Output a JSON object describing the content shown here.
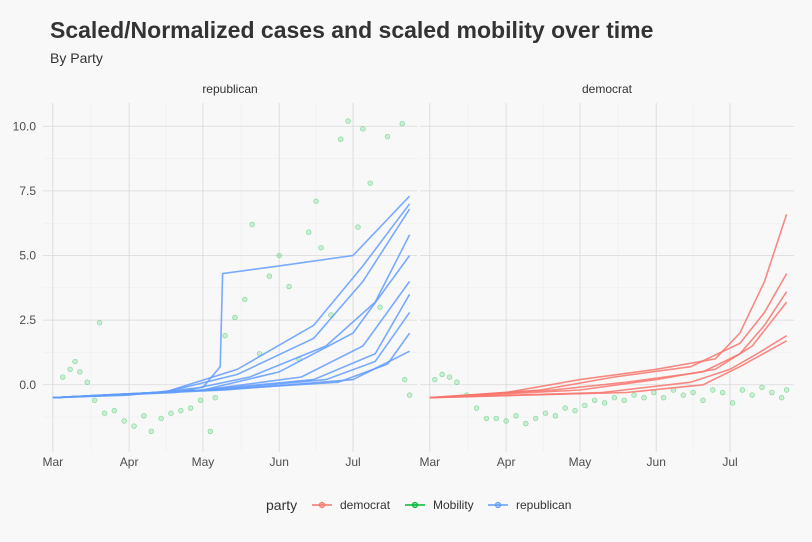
{
  "chart_data": {
    "type": "line",
    "title": "Scaled/Normalized cases and scaled mobility over time",
    "subtitle": "By Party",
    "xlabel": "",
    "ylabel": "",
    "x_ticks": [
      "Mar",
      "Apr",
      "May",
      "Jun",
      "Jul"
    ],
    "y_ticks": [
      "0.0",
      "2.5",
      "5.0",
      "7.5",
      "10.0"
    ],
    "xlim": [
      "2020-02-26",
      "2020-07-27"
    ],
    "ylim": [
      -2.6,
      10.9
    ],
    "grid": true,
    "legend": {
      "title": "party",
      "position": "bottom",
      "entries": [
        {
          "name": "democrat",
          "color": "#F8766D"
        },
        {
          "name": "Mobility",
          "color": "#00BA38"
        },
        {
          "name": "republican",
          "color": "#619CFF"
        }
      ]
    },
    "facets": [
      {
        "label": "republican",
        "case_series": [
          {
            "color": "#619CFF",
            "points": [
              [
                "2020-03-01",
                -0.5
              ],
              [
                "2020-04-01",
                -0.4
              ],
              [
                "2020-05-01",
                -0.1
              ],
              [
                "2020-05-08",
                0.7
              ],
              [
                "2020-05-09",
                4.3
              ],
              [
                "2020-06-01",
                4.6
              ],
              [
                "2020-07-01",
                5.0
              ],
              [
                "2020-07-24",
                7.3
              ]
            ]
          },
          {
            "color": "#619CFF",
            "points": [
              [
                "2020-03-01",
                -0.5
              ],
              [
                "2020-04-15",
                -0.3
              ],
              [
                "2020-05-15",
                0.6
              ],
              [
                "2020-06-15",
                2.3
              ],
              [
                "2020-07-05",
                4.6
              ],
              [
                "2020-07-24",
                7.0
              ]
            ]
          },
          {
            "color": "#619CFF",
            "points": [
              [
                "2020-03-01",
                -0.5
              ],
              [
                "2020-04-15",
                -0.3
              ],
              [
                "2020-05-15",
                0.4
              ],
              [
                "2020-06-15",
                1.8
              ],
              [
                "2020-07-05",
                4.0
              ],
              [
                "2020-07-24",
                6.8
              ]
            ]
          },
          {
            "color": "#619CFF",
            "points": [
              [
                "2020-03-01",
                -0.5
              ],
              [
                "2020-04-20",
                -0.3
              ],
              [
                "2020-05-20",
                0.3
              ],
              [
                "2020-06-20",
                1.5
              ],
              [
                "2020-07-10",
                3.2
              ],
              [
                "2020-07-24",
                5.8
              ]
            ]
          },
          {
            "color": "#619CFF",
            "points": [
              [
                "2020-03-01",
                -0.5
              ],
              [
                "2020-05-01",
                -0.2
              ],
              [
                "2020-06-01",
                0.5
              ],
              [
                "2020-07-01",
                2.0
              ],
              [
                "2020-07-24",
                5.0
              ]
            ]
          },
          {
            "color": "#619CFF",
            "points": [
              [
                "2020-03-01",
                -0.5
              ],
              [
                "2020-05-01",
                -0.2
              ],
              [
                "2020-06-10",
                0.3
              ],
              [
                "2020-07-05",
                1.5
              ],
              [
                "2020-07-24",
                4.0
              ]
            ]
          },
          {
            "color": "#619CFF",
            "points": [
              [
                "2020-03-01",
                -0.5
              ],
              [
                "2020-05-01",
                -0.2
              ],
              [
                "2020-06-15",
                0.2
              ],
              [
                "2020-07-10",
                1.2
              ],
              [
                "2020-07-24",
                3.5
              ]
            ]
          },
          {
            "color": "#619CFF",
            "points": [
              [
                "2020-03-01",
                -0.5
              ],
              [
                "2020-05-05",
                -0.2
              ],
              [
                "2020-06-20",
                0.2
              ],
              [
                "2020-07-10",
                0.9
              ],
              [
                "2020-07-24",
                2.8
              ]
            ]
          },
          {
            "color": "#619CFF",
            "points": [
              [
                "2020-03-01",
                -0.5
              ],
              [
                "2020-05-05",
                -0.2
              ],
              [
                "2020-06-25",
                0.1
              ],
              [
                "2020-07-15",
                0.8
              ],
              [
                "2020-07-24",
                2.0
              ]
            ]
          },
          {
            "color": "#619CFF",
            "points": [
              [
                "2020-03-01",
                -0.5
              ],
              [
                "2020-05-10",
                -0.2
              ],
              [
                "2020-07-01",
                0.2
              ],
              [
                "2020-07-24",
                1.3
              ]
            ]
          }
        ],
        "mobility_points": [
          [
            "2020-03-05",
            0.3
          ],
          [
            "2020-03-08",
            0.6
          ],
          [
            "2020-03-10",
            0.9
          ],
          [
            "2020-03-12",
            0.5
          ],
          [
            "2020-03-15",
            0.1
          ],
          [
            "2020-03-18",
            -0.6
          ],
          [
            "2020-03-20",
            2.4
          ],
          [
            "2020-03-22",
            -1.1
          ],
          [
            "2020-03-26",
            -1.0
          ],
          [
            "2020-03-30",
            -1.4
          ],
          [
            "2020-04-03",
            -1.6
          ],
          [
            "2020-04-07",
            -1.2
          ],
          [
            "2020-04-10",
            -1.8
          ],
          [
            "2020-04-14",
            -1.3
          ],
          [
            "2020-04-18",
            -1.1
          ],
          [
            "2020-04-22",
            -1.0
          ],
          [
            "2020-04-26",
            -0.9
          ],
          [
            "2020-04-30",
            -0.6
          ],
          [
            "2020-05-04",
            -1.8
          ],
          [
            "2020-05-06",
            -0.5
          ],
          [
            "2020-05-10",
            1.9
          ],
          [
            "2020-05-14",
            2.6
          ],
          [
            "2020-05-18",
            3.3
          ],
          [
            "2020-05-21",
            6.2
          ],
          [
            "2020-05-24",
            1.2
          ],
          [
            "2020-05-28",
            4.2
          ],
          [
            "2020-06-01",
            5.0
          ],
          [
            "2020-06-05",
            3.8
          ],
          [
            "2020-06-09",
            1.0
          ],
          [
            "2020-06-13",
            5.9
          ],
          [
            "2020-06-16",
            7.1
          ],
          [
            "2020-06-18",
            5.3
          ],
          [
            "2020-06-22",
            2.7
          ],
          [
            "2020-06-26",
            9.5
          ],
          [
            "2020-06-29",
            10.2
          ],
          [
            "2020-07-03",
            6.1
          ],
          [
            "2020-07-05",
            9.9
          ],
          [
            "2020-07-08",
            7.8
          ],
          [
            "2020-07-12",
            3.0
          ],
          [
            "2020-07-15",
            9.6
          ],
          [
            "2020-07-21",
            10.1
          ],
          [
            "2020-07-22",
            0.2
          ],
          [
            "2020-07-24",
            -0.4
          ]
        ]
      },
      {
        "label": "democrat",
        "case_series": [
          {
            "color": "#F8766D",
            "points": [
              [
                "2020-03-01",
                -0.5
              ],
              [
                "2020-04-01",
                -0.3
              ],
              [
                "2020-05-01",
                0.2
              ],
              [
                "2020-06-01",
                0.6
              ],
              [
                "2020-06-25",
                1.0
              ],
              [
                "2020-07-05",
                2.0
              ],
              [
                "2020-07-15",
                4.0
              ],
              [
                "2020-07-24",
                6.6
              ]
            ]
          },
          {
            "color": "#F8766D",
            "points": [
              [
                "2020-03-01",
                -0.5
              ],
              [
                "2020-04-15",
                -0.2
              ],
              [
                "2020-05-15",
                0.3
              ],
              [
                "2020-06-15",
                0.7
              ],
              [
                "2020-07-05",
                1.6
              ],
              [
                "2020-07-15",
                2.8
              ],
              [
                "2020-07-24",
                4.3
              ]
            ]
          },
          {
            "color": "#F8766D",
            "points": [
              [
                "2020-03-01",
                -0.5
              ],
              [
                "2020-04-20",
                -0.2
              ],
              [
                "2020-05-20",
                0.1
              ],
              [
                "2020-06-20",
                0.5
              ],
              [
                "2020-07-05",
                1.2
              ],
              [
                "2020-07-15",
                2.3
              ],
              [
                "2020-07-24",
                3.6
              ]
            ]
          },
          {
            "color": "#F8766D",
            "points": [
              [
                "2020-03-01",
                -0.5
              ],
              [
                "2020-05-01",
                -0.2
              ],
              [
                "2020-06-01",
                0.2
              ],
              [
                "2020-06-25",
                0.6
              ],
              [
                "2020-07-10",
                1.5
              ],
              [
                "2020-07-24",
                3.2
              ]
            ]
          },
          {
            "color": "#F8766D",
            "points": [
              [
                "2020-03-01",
                -0.5
              ],
              [
                "2020-05-10",
                -0.3
              ],
              [
                "2020-06-15",
                0.1
              ],
              [
                "2020-07-01",
                0.6
              ],
              [
                "2020-07-12",
                1.2
              ],
              [
                "2020-07-24",
                1.9
              ]
            ]
          },
          {
            "color": "#F8766D",
            "points": [
              [
                "2020-03-01",
                -0.5
              ],
              [
                "2020-05-20",
                -0.3
              ],
              [
                "2020-06-20",
                0.0
              ],
              [
                "2020-07-05",
                0.7
              ],
              [
                "2020-07-24",
                1.7
              ]
            ]
          }
        ],
        "mobility_points": [
          [
            "2020-03-03",
            0.2
          ],
          [
            "2020-03-06",
            0.4
          ],
          [
            "2020-03-09",
            0.3
          ],
          [
            "2020-03-12",
            0.1
          ],
          [
            "2020-03-16",
            -0.4
          ],
          [
            "2020-03-20",
            -0.9
          ],
          [
            "2020-03-24",
            -1.3
          ],
          [
            "2020-03-28",
            -1.3
          ],
          [
            "2020-04-01",
            -1.4
          ],
          [
            "2020-04-05",
            -1.2
          ],
          [
            "2020-04-09",
            -1.5
          ],
          [
            "2020-04-13",
            -1.3
          ],
          [
            "2020-04-17",
            -1.1
          ],
          [
            "2020-04-21",
            -1.2
          ],
          [
            "2020-04-25",
            -0.9
          ],
          [
            "2020-04-29",
            -1.0
          ],
          [
            "2020-05-03",
            -0.8
          ],
          [
            "2020-05-07",
            -0.6
          ],
          [
            "2020-05-11",
            -0.7
          ],
          [
            "2020-05-15",
            -0.5
          ],
          [
            "2020-05-19",
            -0.6
          ],
          [
            "2020-05-23",
            -0.4
          ],
          [
            "2020-05-27",
            -0.5
          ],
          [
            "2020-05-31",
            -0.3
          ],
          [
            "2020-06-04",
            -0.5
          ],
          [
            "2020-06-08",
            -0.2
          ],
          [
            "2020-06-12",
            -0.4
          ],
          [
            "2020-06-16",
            -0.3
          ],
          [
            "2020-06-20",
            -0.6
          ],
          [
            "2020-06-24",
            -0.2
          ],
          [
            "2020-06-28",
            -0.3
          ],
          [
            "2020-07-02",
            -0.7
          ],
          [
            "2020-07-06",
            -0.2
          ],
          [
            "2020-07-10",
            -0.4
          ],
          [
            "2020-07-14",
            -0.1
          ],
          [
            "2020-07-18",
            -0.3
          ],
          [
            "2020-07-22",
            -0.5
          ],
          [
            "2020-07-24",
            -0.2
          ]
        ]
      }
    ]
  }
}
